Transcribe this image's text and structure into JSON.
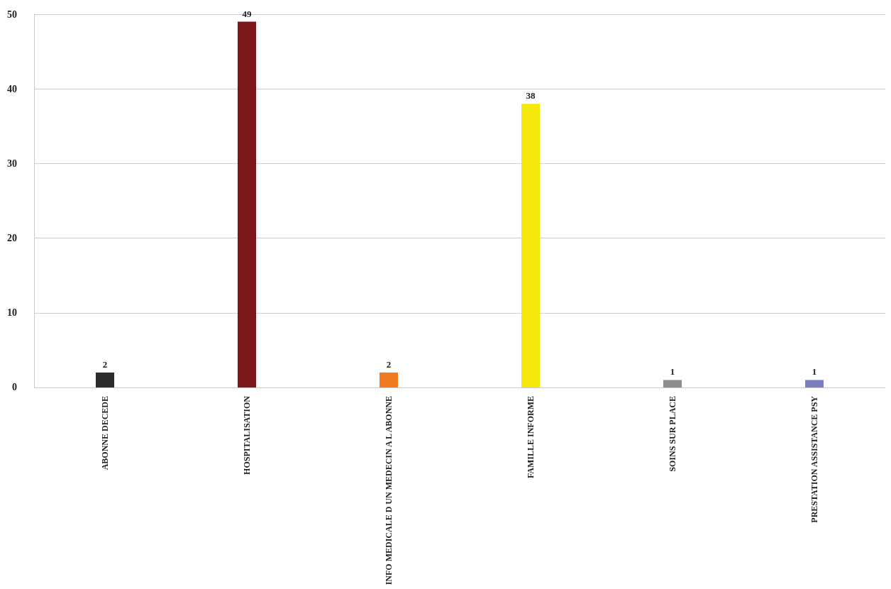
{
  "chart_data": {
    "type": "bar",
    "categories": [
      "ABONNE DECEDE",
      "HOSPITALISATION",
      "INFO MEDICALE D UN MEDECIN A L ABONNE",
      "FAMILLE INFORME",
      "SOINS SUR PLACE",
      "PRESTATION ASSISTANCE PSY"
    ],
    "values": [
      2,
      49,
      2,
      38,
      1,
      1
    ],
    "colors": [
      "#2b2b2b",
      "#7b1718",
      "#f07a20",
      "#f5e80a",
      "#8c8c8c",
      "#7b7fc0"
    ],
    "ylim": [
      0,
      50
    ],
    "yticks": [
      0,
      10,
      20,
      30,
      40,
      50
    ],
    "grid": "y",
    "data_labels": true
  }
}
